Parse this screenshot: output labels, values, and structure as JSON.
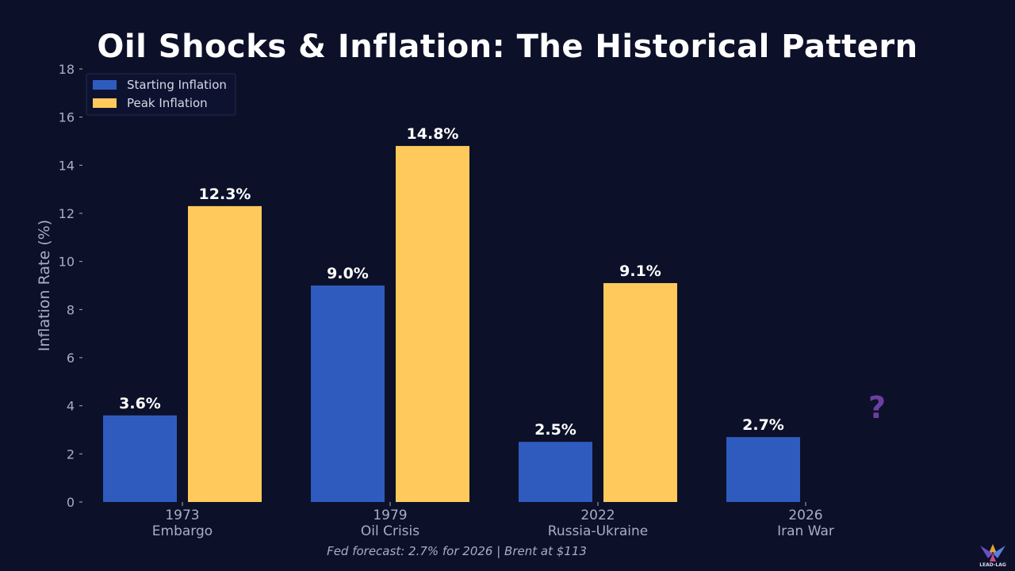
{
  "chart_data": {
    "type": "bar",
    "title": "Oil Shocks & Inflation: The Historical Pattern",
    "ylabel": "Inflation Rate (%)",
    "xlabel": "",
    "ylim": [
      0,
      18
    ],
    "yticks": [
      0,
      2,
      4,
      6,
      8,
      10,
      12,
      14,
      16,
      18
    ],
    "grid": true,
    "legend_position": "top-left",
    "categories": [
      {
        "year": "1973",
        "name": "Embargo"
      },
      {
        "year": "1979",
        "name": "Oil Crisis"
      },
      {
        "year": "2022",
        "name": "Russia-Ukraine"
      },
      {
        "year": "2026",
        "name": "Iran War"
      }
    ],
    "series": [
      {
        "name": "Starting Inflation",
        "color": "#2f5bbf",
        "values": [
          3.6,
          9.0,
          2.5,
          2.7
        ],
        "labels": [
          "3.6%",
          "9.0%",
          "2.5%",
          "2.7%"
        ]
      },
      {
        "name": "Peak Inflation",
        "color": "#ffc95c",
        "values": [
          12.3,
          14.8,
          9.1,
          null
        ],
        "labels": [
          "12.3%",
          "14.8%",
          "9.1%",
          ""
        ]
      }
    ],
    "annotation": {
      "text": "?",
      "color": "#6b3fa0"
    },
    "footnote": "Fed forecast: 2.7% for 2026 | Brent at $113"
  },
  "logo": {
    "text": "LEAD-LAG"
  }
}
